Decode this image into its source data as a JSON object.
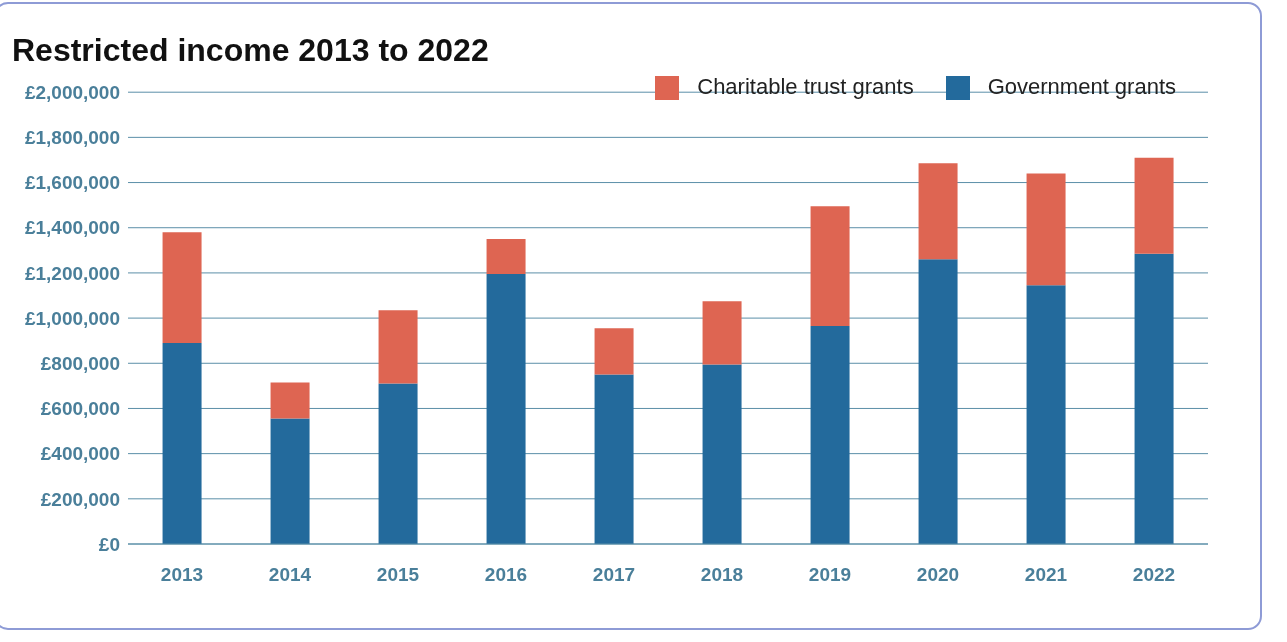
{
  "chart_data": {
    "type": "bar",
    "title": "Restricted income 2013 to 2022",
    "stacked": true,
    "categories": [
      "2013",
      "2014",
      "2015",
      "2016",
      "2017",
      "2018",
      "2019",
      "2020",
      "2021",
      "2022"
    ],
    "series": [
      {
        "name": "Government grants",
        "color": "#236a9c",
        "values": [
          890000,
          555000,
          710000,
          1195000,
          750000,
          795000,
          965000,
          1260000,
          1145000,
          1285000
        ]
      },
      {
        "name": "Charitable trust grants",
        "color": "#de6552",
        "values": [
          490000,
          160000,
          325000,
          155000,
          205000,
          280000,
          530000,
          425000,
          495000,
          425000
        ]
      }
    ],
    "ylim": [
      0,
      2000000
    ],
    "yticks": [
      {
        "value": 0,
        "label": "£0"
      },
      {
        "value": 200000,
        "label": "£200,000"
      },
      {
        "value": 400000,
        "label": "£400,000"
      },
      {
        "value": 600000,
        "label": "£600,000"
      },
      {
        "value": 800000,
        "label": "£800,000"
      },
      {
        "value": 1000000,
        "label": "£1,000,000"
      },
      {
        "value": 1200000,
        "label": "£1,200,000"
      },
      {
        "value": 1400000,
        "label": "£1,400,000"
      },
      {
        "value": 1600000,
        "label": "£1,600,000"
      },
      {
        "value": 1800000,
        "label": "£1,800,000"
      },
      {
        "value": 2000000,
        "label": "£2,000,000"
      }
    ],
    "grid": "y",
    "legend": "top right"
  }
}
